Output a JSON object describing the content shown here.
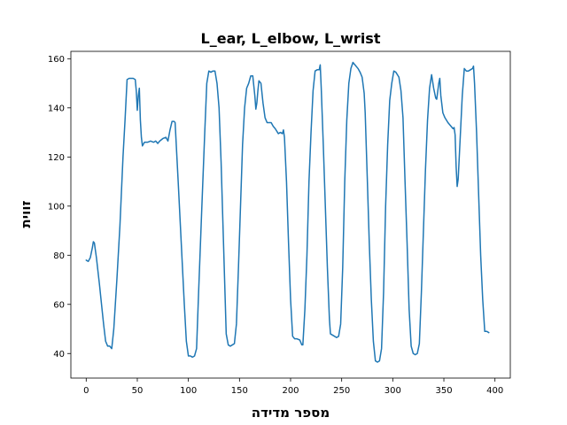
{
  "chart_data": {
    "type": "line",
    "title": "L_ear, L_elbow, L_wrist",
    "xlabel": "מספר מדידה",
    "ylabel": "זווית",
    "xlim": [
      -15,
      415
    ],
    "ylim": [
      30,
      163
    ],
    "xticks": [
      0,
      50,
      100,
      150,
      200,
      250,
      300,
      350,
      400
    ],
    "yticks": [
      40,
      60,
      80,
      100,
      120,
      140,
      160
    ],
    "grid": false,
    "series": [
      {
        "color": "#1f77b4",
        "points": [
          [
            0,
            78
          ],
          [
            2,
            77.5
          ],
          [
            4,
            79
          ],
          [
            6,
            83
          ],
          [
            7,
            85.5
          ],
          [
            8,
            85
          ],
          [
            10,
            79
          ],
          [
            13,
            68
          ],
          [
            15,
            60
          ],
          [
            17,
            52
          ],
          [
            19,
            45
          ],
          [
            21,
            43
          ],
          [
            23,
            43
          ],
          [
            25,
            42
          ],
          [
            27,
            50
          ],
          [
            30,
            70
          ],
          [
            33,
            92
          ],
          [
            36,
            120
          ],
          [
            38,
            135
          ],
          [
            40,
            151.5
          ],
          [
            42,
            152
          ],
          [
            44,
            152
          ],
          [
            46,
            152
          ],
          [
            48,
            151.5
          ],
          [
            49,
            147
          ],
          [
            50,
            139
          ],
          [
            51,
            145
          ],
          [
            52,
            148
          ],
          [
            53,
            135
          ],
          [
            54,
            128
          ],
          [
            55,
            124.5
          ],
          [
            57,
            126
          ],
          [
            60,
            126
          ],
          [
            63,
            126.5
          ],
          [
            66,
            126
          ],
          [
            68,
            126.5
          ],
          [
            70,
            125.5
          ],
          [
            72,
            126.5
          ],
          [
            75,
            127.5
          ],
          [
            78,
            128
          ],
          [
            80,
            126.5
          ],
          [
            82,
            131
          ],
          [
            84,
            134.5
          ],
          [
            86,
            134.5
          ],
          [
            87,
            134
          ],
          [
            90,
            110
          ],
          [
            93,
            85
          ],
          [
            96,
            60
          ],
          [
            98,
            45
          ],
          [
            100,
            39
          ],
          [
            102,
            39
          ],
          [
            104,
            38.5
          ],
          [
            106,
            39
          ],
          [
            108,
            42
          ],
          [
            110,
            65
          ],
          [
            113,
            98
          ],
          [
            116,
            130
          ],
          [
            118,
            150
          ],
          [
            120,
            155
          ],
          [
            122,
            154.5
          ],
          [
            124,
            155
          ],
          [
            126,
            155
          ],
          [
            128,
            150
          ],
          [
            130,
            140
          ],
          [
            132,
            118
          ],
          [
            134,
            90
          ],
          [
            136,
            62
          ],
          [
            137,
            48
          ],
          [
            139,
            43.5
          ],
          [
            141,
            43
          ],
          [
            143,
            43.5
          ],
          [
            145,
            44
          ],
          [
            147,
            52
          ],
          [
            149,
            75
          ],
          [
            151,
            100
          ],
          [
            153,
            125
          ],
          [
            155,
            140
          ],
          [
            157,
            148
          ],
          [
            159,
            150
          ],
          [
            161,
            153
          ],
          [
            163,
            153
          ],
          [
            165,
            145
          ],
          [
            166,
            139.5
          ],
          [
            167,
            142
          ],
          [
            168,
            147
          ],
          [
            169,
            151
          ],
          [
            171,
            150
          ],
          [
            173,
            142
          ],
          [
            175,
            136
          ],
          [
            177,
            134
          ],
          [
            179,
            134
          ],
          [
            181,
            134
          ],
          [
            183,
            132.5
          ],
          [
            185,
            131.5
          ],
          [
            188,
            129.5
          ],
          [
            190,
            130
          ],
          [
            192,
            129.5
          ],
          [
            193,
            131
          ],
          [
            194,
            128
          ],
          [
            196,
            110
          ],
          [
            198,
            85
          ],
          [
            200,
            62
          ],
          [
            202,
            47
          ],
          [
            204,
            46
          ],
          [
            206,
            46
          ],
          [
            209,
            45.5
          ],
          [
            211,
            43.5
          ],
          [
            212,
            43.5
          ],
          [
            214,
            58
          ],
          [
            216,
            80
          ],
          [
            218,
            110
          ],
          [
            220,
            130
          ],
          [
            222,
            147
          ],
          [
            224,
            155
          ],
          [
            226,
            155.5
          ],
          [
            228,
            155.5
          ],
          [
            229,
            157.5
          ],
          [
            230,
            148
          ],
          [
            232,
            125
          ],
          [
            234,
            100
          ],
          [
            236,
            75
          ],
          [
            238,
            54
          ],
          [
            239,
            48
          ],
          [
            241,
            47.5
          ],
          [
            243,
            47
          ],
          [
            245,
            46.5
          ],
          [
            247,
            47
          ],
          [
            249,
            52
          ],
          [
            251,
            75
          ],
          [
            253,
            110
          ],
          [
            255,
            135
          ],
          [
            257,
            150
          ],
          [
            259,
            156
          ],
          [
            261,
            158.5
          ],
          [
            263,
            157.5
          ],
          [
            266,
            156
          ],
          [
            268,
            154.5
          ],
          [
            270,
            152.5
          ],
          [
            272,
            146
          ],
          [
            273,
            138
          ],
          [
            275,
            112
          ],
          [
            277,
            85
          ],
          [
            279,
            62
          ],
          [
            281,
            45
          ],
          [
            283,
            37
          ],
          [
            285,
            36.5
          ],
          [
            287,
            37
          ],
          [
            289,
            42
          ],
          [
            291,
            65
          ],
          [
            293,
            100
          ],
          [
            295,
            125
          ],
          [
            297,
            143
          ],
          [
            299,
            150
          ],
          [
            301,
            155
          ],
          [
            303,
            154.5
          ],
          [
            306,
            152.5
          ],
          [
            308,
            147
          ],
          [
            310,
            136
          ],
          [
            312,
            110
          ],
          [
            314,
            85
          ],
          [
            316,
            58
          ],
          [
            318,
            43
          ],
          [
            320,
            40
          ],
          [
            322,
            39.5
          ],
          [
            324,
            40
          ],
          [
            326,
            44
          ],
          [
            328,
            65
          ],
          [
            330,
            90
          ],
          [
            332,
            115
          ],
          [
            334,
            135
          ],
          [
            336,
            148
          ],
          [
            338,
            153.5
          ],
          [
            340,
            148
          ],
          [
            342,
            144
          ],
          [
            343,
            143.5
          ],
          [
            345,
            150
          ],
          [
            346,
            152
          ],
          [
            347,
            145
          ],
          [
            349,
            138
          ],
          [
            351,
            136
          ],
          [
            354,
            134
          ],
          [
            357,
            132.5
          ],
          [
            359,
            131.5
          ],
          [
            360,
            132
          ],
          [
            361,
            129
          ],
          [
            362,
            116
          ],
          [
            363,
            108
          ],
          [
            364,
            111
          ],
          [
            366,
            128
          ],
          [
            368,
            145
          ],
          [
            370,
            156
          ],
          [
            372,
            155
          ],
          [
            374,
            155
          ],
          [
            376,
            155.5
          ],
          [
            378,
            156
          ],
          [
            379,
            157
          ],
          [
            380,
            150
          ],
          [
            382,
            130
          ],
          [
            384,
            105
          ],
          [
            386,
            80
          ],
          [
            388,
            62
          ],
          [
            390,
            49
          ],
          [
            392,
            49
          ],
          [
            394,
            48.5
          ]
        ]
      }
    ]
  }
}
